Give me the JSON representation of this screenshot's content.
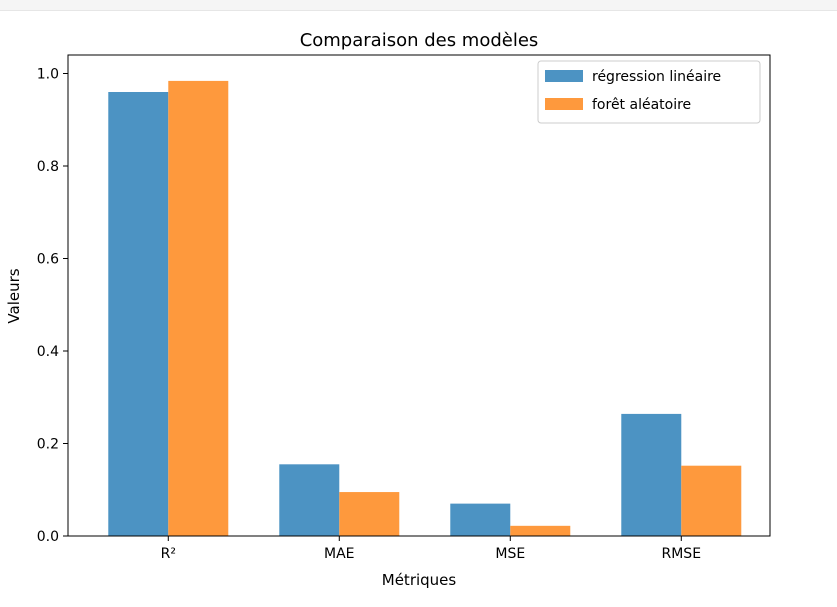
{
  "chart_data": {
    "type": "bar",
    "title": "Comparaison des modèles",
    "xlabel": "Métriques",
    "ylabel": "Valeurs",
    "categories": [
      "R²",
      "MAE",
      "MSE",
      "RMSE"
    ],
    "series": [
      {
        "name": "régression linéaire",
        "values": [
          0.96,
          0.155,
          0.07,
          0.264
        ],
        "color": "#4c93c3"
      },
      {
        "name": "forêt aléatoire",
        "values": [
          0.984,
          0.095,
          0.022,
          0.152
        ],
        "color": "#fe993d"
      }
    ],
    "ylim": [
      0,
      1.04
    ],
    "yticks": [
      "0.0",
      "0.2",
      "0.4",
      "0.6",
      "0.8",
      "1.0"
    ],
    "grid": false,
    "legend_position": "top-right"
  }
}
